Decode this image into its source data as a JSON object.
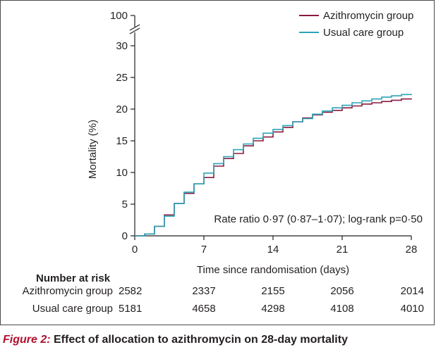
{
  "chart_data": {
    "type": "line",
    "step": true,
    "xlabel": "Time since randomisation (days)",
    "ylabel": "Mortality (%)",
    "xlim": [
      0,
      28
    ],
    "ylim": [
      0,
      30
    ],
    "y_axis_break": {
      "upper_tick": 100
    },
    "xticks": [
      0,
      7,
      14,
      21,
      28
    ],
    "yticks": [
      0,
      5,
      10,
      15,
      20,
      25,
      30,
      100
    ],
    "legend_position": "top-right",
    "series": [
      {
        "name": "Azithromycin group",
        "color": "#8b1a3e",
        "x": [
          0,
          1,
          2,
          3,
          4,
          5,
          6,
          7,
          8,
          9,
          10,
          11,
          12,
          13,
          14,
          15,
          16,
          17,
          18,
          19,
          20,
          21,
          22,
          23,
          24,
          25,
          26,
          27,
          28
        ],
        "y": [
          0,
          0.3,
          1.5,
          3.3,
          5.1,
          6.7,
          8.2,
          9.2,
          11.0,
          12.2,
          13.0,
          14.2,
          15.0,
          15.6,
          16.4,
          17.1,
          18.0,
          18.6,
          19.1,
          19.5,
          19.8,
          20.2,
          20.5,
          20.8,
          21.0,
          21.2,
          21.4,
          21.6,
          21.7
        ]
      },
      {
        "name": "Usual care group",
        "color": "#2aa4b8",
        "x": [
          0,
          1,
          2,
          3,
          4,
          5,
          6,
          7,
          8,
          9,
          10,
          11,
          12,
          13,
          14,
          15,
          16,
          17,
          18,
          19,
          20,
          21,
          22,
          23,
          24,
          25,
          26,
          27,
          28
        ],
        "y": [
          0,
          0.3,
          1.5,
          3.1,
          5.1,
          6.9,
          8.2,
          9.9,
          11.4,
          12.5,
          13.6,
          14.5,
          15.4,
          16.2,
          16.8,
          17.4,
          18.0,
          18.5,
          19.2,
          19.7,
          20.2,
          20.6,
          21.0,
          21.3,
          21.6,
          21.9,
          22.1,
          22.3,
          22.4
        ]
      }
    ],
    "annotation": "Rate ratio 0·97 (0·87–1·07); log-rank p=0·50"
  },
  "risk_table": {
    "title": "Number at risk",
    "days": [
      0,
      7,
      14,
      21,
      28
    ],
    "rows": [
      {
        "label": "Azithromycin group",
        "values": [
          "2582",
          "2337",
          "2155",
          "2056",
          "2014"
        ]
      },
      {
        "label": "Usual care group",
        "values": [
          "5181",
          "4658",
          "4298",
          "4108",
          "4010"
        ]
      }
    ]
  },
  "caption": {
    "figure_label": "Figure 2:",
    "text": " Effect of allocation to azithromycin on 28-day mortality"
  }
}
